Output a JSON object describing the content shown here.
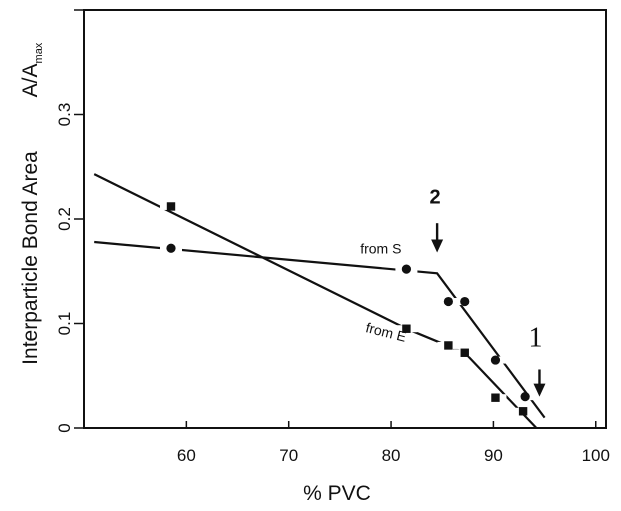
{
  "chart_data": {
    "type": "line",
    "title": "",
    "xlabel": "% PVC",
    "ylabel": "Interparticle Bond Area",
    "ylabel_symbol": "A/A",
    "ylabel_symbol_sub": "max",
    "xlim": [
      50,
      101
    ],
    "ylim": [
      0,
      0.4
    ],
    "x_ticks": [
      60,
      70,
      80,
      90,
      100
    ],
    "x_tick_labels": [
      "60",
      "70",
      "80",
      "90",
      "100"
    ],
    "y_ticks": [
      0,
      0.1,
      0.2,
      0.3,
      0.4
    ],
    "y_tick_labels": [
      "0",
      "0.1",
      "0.2",
      "0.3",
      ""
    ],
    "grid": false,
    "series": [
      {
        "name": "from S",
        "marker": "circle",
        "points": [
          {
            "x": 58.5,
            "y": 0.172
          },
          {
            "x": 81.5,
            "y": 0.152
          },
          {
            "x": 85.6,
            "y": 0.121
          },
          {
            "x": 87.2,
            "y": 0.121
          },
          {
            "x": 90.2,
            "y": 0.065
          },
          {
            "x": 93.1,
            "y": 0.03
          }
        ],
        "line": [
          {
            "x": 51,
            "y": 0.178
          },
          {
            "x": 84.5,
            "y": 0.148
          },
          {
            "x": 95,
            "y": 0.01
          }
        ]
      },
      {
        "name": "from E",
        "marker": "square",
        "points": [
          {
            "x": 58.5,
            "y": 0.212
          },
          {
            "x": 81.5,
            "y": 0.095
          },
          {
            "x": 85.6,
            "y": 0.079
          },
          {
            "x": 87.2,
            "y": 0.072
          },
          {
            "x": 90.2,
            "y": 0.029
          },
          {
            "x": 92.9,
            "y": 0.016
          }
        ],
        "line": [
          {
            "x": 51,
            "y": 0.243
          },
          {
            "x": 81.5,
            "y": 0.095
          },
          {
            "x": 87.2,
            "y": 0.072
          },
          {
            "x": 94.2,
            "y": 0.0
          }
        ]
      }
    ],
    "series_labels": [
      {
        "text": "from S",
        "x": 79,
        "y": 0.172
      },
      {
        "text": "from E",
        "x": 79,
        "y": 0.092
      }
    ],
    "annotations": [
      {
        "text": "2",
        "arrow_x": 84.5,
        "text_y": 0.215,
        "arrow_from_y": 0.196,
        "arrow_to_y": 0.168
      },
      {
        "text": "1",
        "arrow_x": 94.5,
        "text_y": 0.078,
        "arrow_from_y": 0.056,
        "arrow_to_y": 0.03
      }
    ]
  }
}
